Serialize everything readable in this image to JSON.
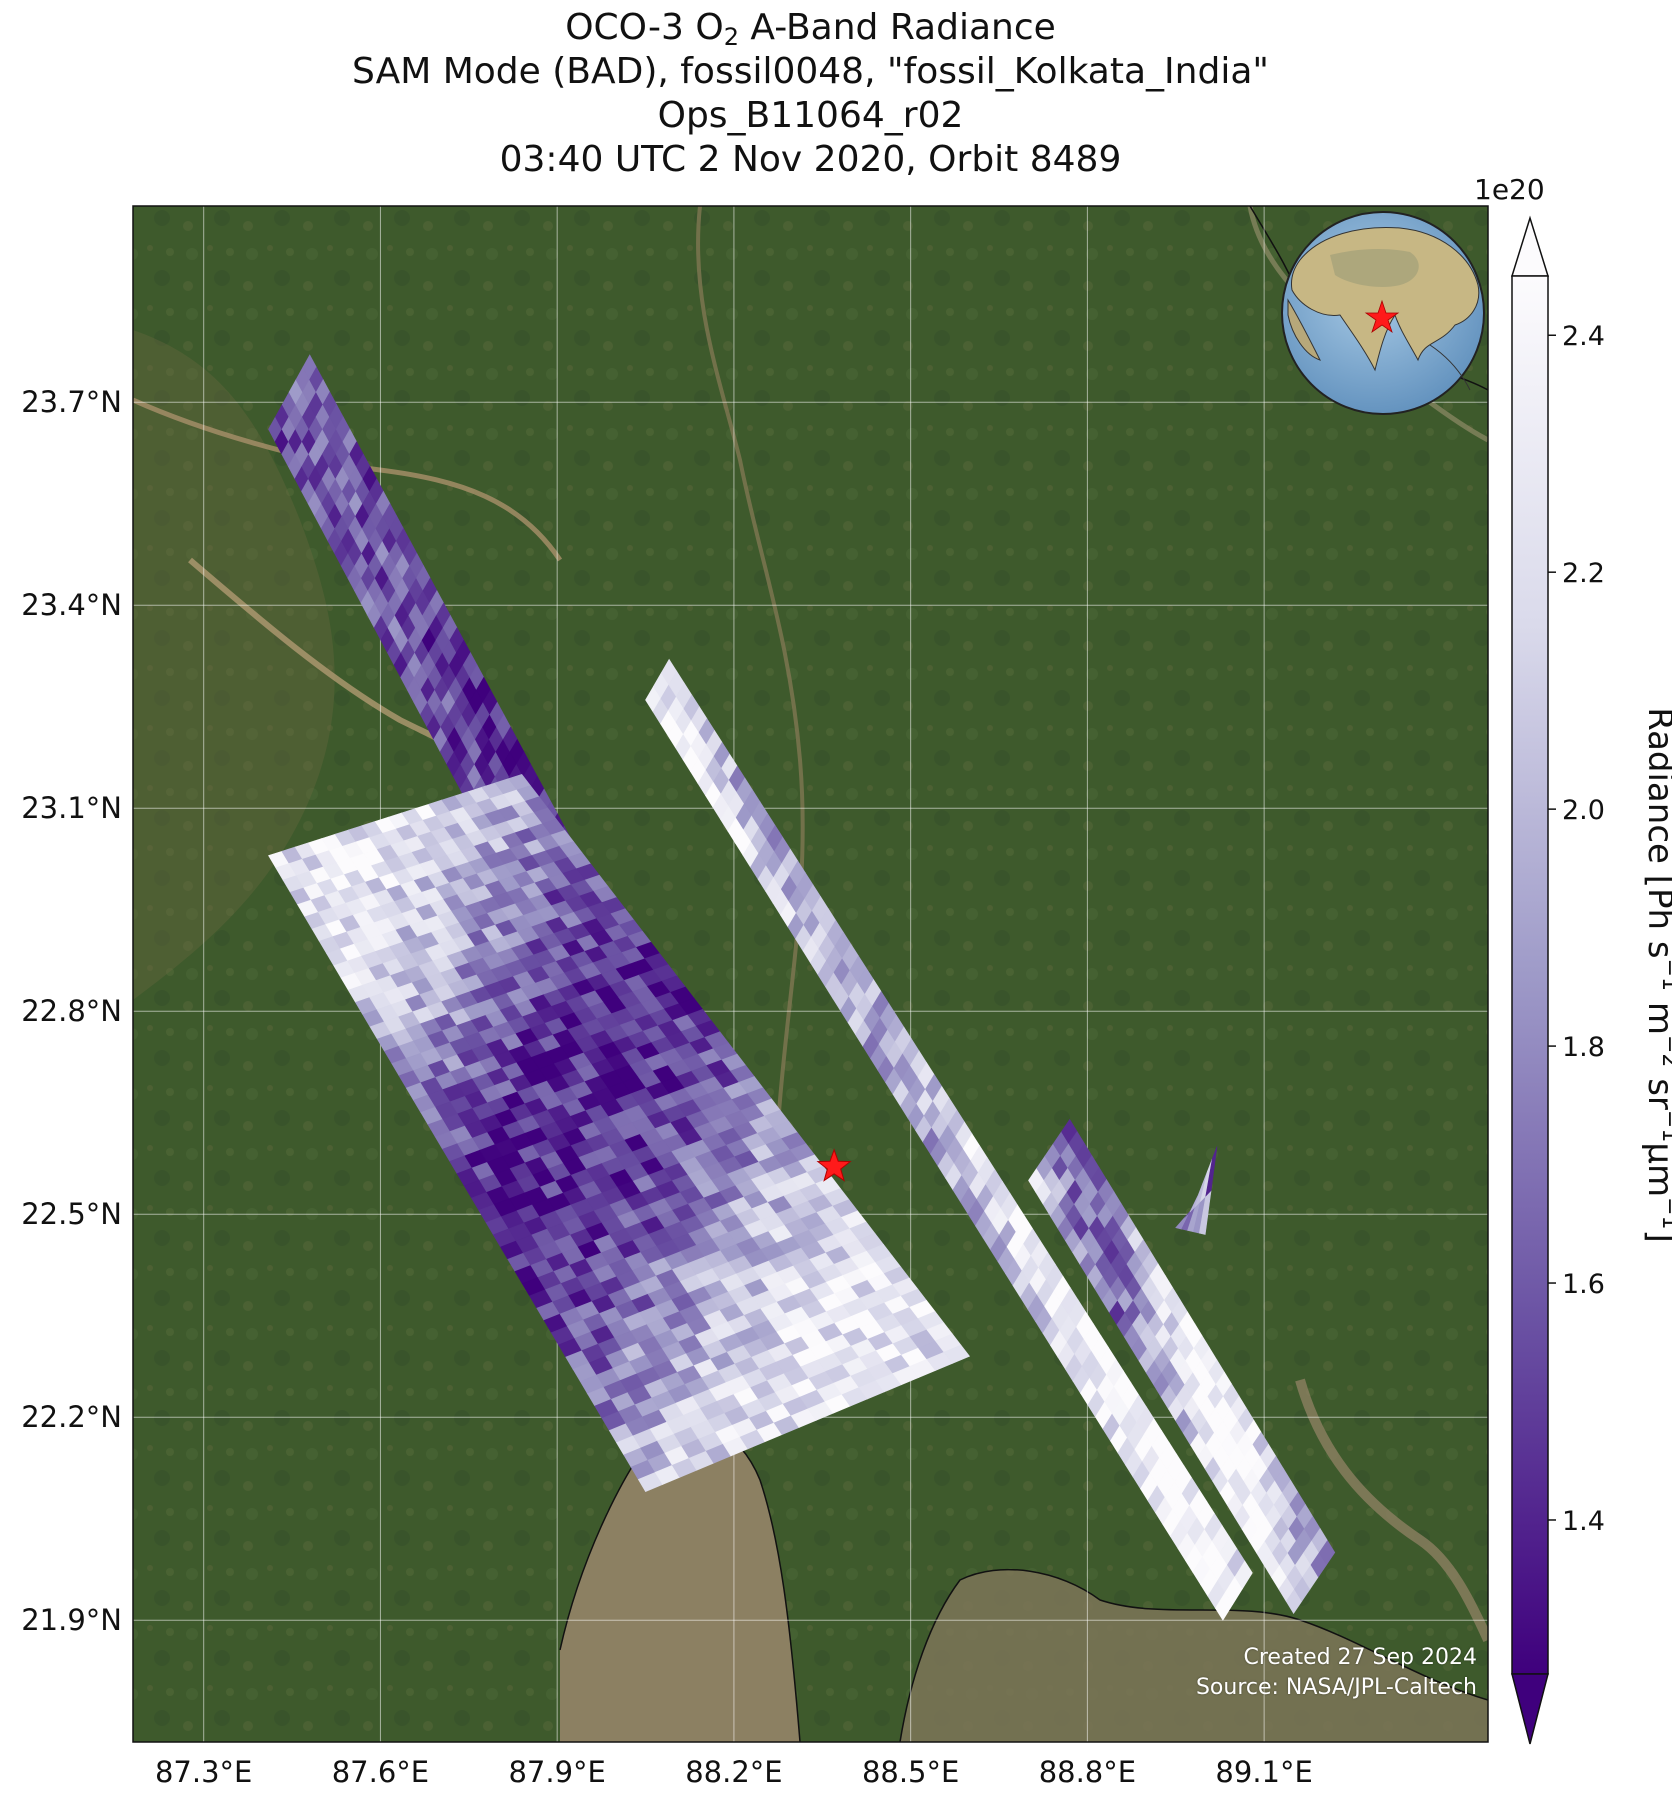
{
  "title": {
    "line1_prefix": "OCO-3 O",
    "line1_sub": "2",
    "line1_suffix": " A-Band Radiance",
    "line2": "SAM Mode (BAD), fossil0048, \"fossil_Kolkata_India\"",
    "line3": "Ops_B11064_r02",
    "line4": "03:40 UTC 2 Nov 2020, Orbit 8489"
  },
  "map": {
    "lon_range": [
      87.18,
      89.48
    ],
    "lat_range": [
      21.72,
      23.99
    ],
    "x_ticks": [
      "87.3°E",
      "87.6°E",
      "87.9°E",
      "88.2°E",
      "88.5°E",
      "88.8°E",
      "89.1°E"
    ],
    "x_tick_values": [
      87.3,
      87.6,
      87.9,
      88.2,
      88.5,
      88.8,
      89.1
    ],
    "y_ticks": [
      "23.7°N",
      "23.4°N",
      "23.1°N",
      "22.8°N",
      "22.5°N",
      "22.2°N",
      "21.9°N"
    ],
    "y_tick_values": [
      23.7,
      23.4,
      23.1,
      22.8,
      22.5,
      22.2,
      21.9
    ],
    "gridlines": true,
    "target_marker": {
      "lon": 88.37,
      "lat": 22.57,
      "symbol": "star",
      "color": "#ff1a1a"
    },
    "inset_globe": {
      "position": "top-right",
      "marker_color": "#ff1a1a"
    },
    "colors": {
      "land": "#3e5a2c",
      "water": "#8c8062",
      "cmap_low": "#3f007d",
      "cmap_high": "#fcfbfd"
    }
  },
  "chart_data": {
    "type": "heatmap",
    "description_free": true,
    "variable_range": [
      1.27,
      2.45
    ],
    "swaths": [
      {
        "corners": [
          [
            87.41,
            23.66
          ],
          [
            87.48,
            23.77
          ],
          [
            88.23,
            22.56
          ],
          [
            88.15,
            22.45
          ]
        ],
        "level": [
          0.08,
          0.3
        ]
      },
      {
        "corners": [
          [
            87.41,
            23.03
          ],
          [
            87.84,
            23.15
          ],
          [
            88.6,
            22.29
          ],
          [
            88.05,
            22.09
          ]
        ],
        "level": [
          0.12,
          0.85
        ]
      },
      {
        "corners": [
          [
            88.05,
            23.26
          ],
          [
            88.09,
            23.32
          ],
          [
            89.08,
            21.97
          ],
          [
            89.03,
            21.9
          ]
        ],
        "level": [
          0.55,
          1.0
        ]
      },
      {
        "corners": [
          [
            88.7,
            22.55
          ],
          [
            88.77,
            22.64
          ],
          [
            89.22,
            22.0
          ],
          [
            89.15,
            21.91
          ]
        ],
        "level": [
          0.35,
          1.0
        ]
      },
      {
        "corners": [
          [
            88.95,
            22.48
          ],
          [
            88.98,
            22.51
          ],
          [
            89.02,
            22.6
          ],
          [
            89.0,
            22.47
          ]
        ],
        "level": [
          0.2,
          0.6
        ]
      }
    ]
  },
  "colorbar": {
    "multiplier": "1e20",
    "ticks": [
      "1.4",
      "1.6",
      "1.8",
      "2.0",
      "2.2",
      "2.4"
    ],
    "tick_values": [
      1.4,
      1.6,
      1.8,
      2.0,
      2.2,
      2.4
    ],
    "range": [
      1.27,
      2.45
    ],
    "label_main": "Radiance [Ph s",
    "label_exp1": "−1",
    "label_mid1": " m",
    "label_exp2": "−2",
    "label_mid2": " sr",
    "label_exp3": "−1",
    "label_mid3": "μm",
    "label_exp4": "−1",
    "label_end": "]"
  },
  "credit": {
    "line1": "Created 27 Sep 2024",
    "line2": "Source: NASA/JPL-Caltech"
  }
}
